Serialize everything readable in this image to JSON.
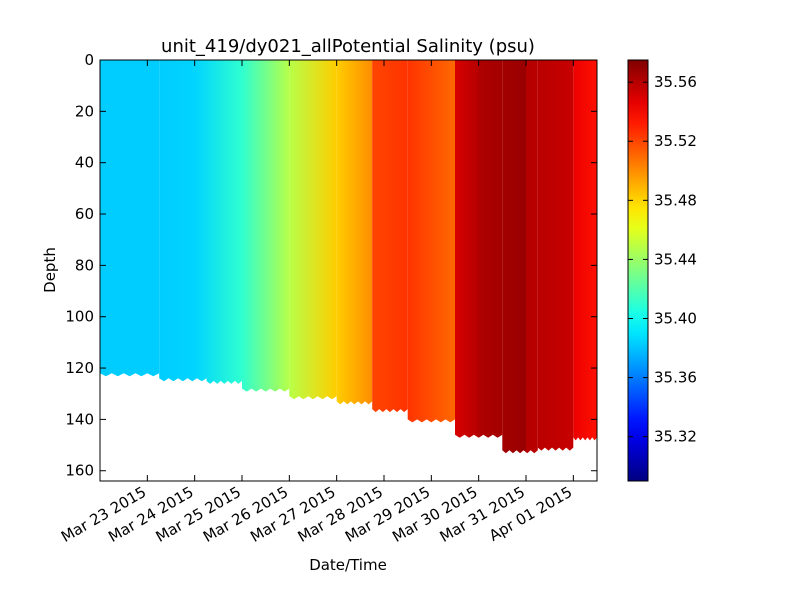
{
  "chart_data": {
    "type": "scatter",
    "title": "unit_419/dy021_allPotential Salinity (psu)",
    "xlabel": "Date/Time",
    "ylabel": "Depth",
    "x_axis_type": "date",
    "xlim": [
      "2015-03-22",
      "2015-04-01 12:00"
    ],
    "ylim": [
      164,
      0
    ],
    "y_inverted": true,
    "x_ticks": [
      "2015-03-23",
      "2015-03-24",
      "2015-03-25",
      "2015-03-26",
      "2015-03-27",
      "2015-03-28",
      "2015-03-29",
      "2015-03-30",
      "2015-03-31",
      "2015-04-01"
    ],
    "x_tick_labels": [
      "Mar 23 2015",
      "Mar 24 2015",
      "Mar 25 2015",
      "Mar 26 2015",
      "Mar 27 2015",
      "Mar 28 2015",
      "Mar 29 2015",
      "Mar 30 2015",
      "Mar 31 2015",
      "Apr 01 2015"
    ],
    "y_ticks": [
      0,
      20,
      40,
      60,
      80,
      100,
      120,
      140,
      160
    ],
    "y_tick_labels": [
      "0",
      "20",
      "40",
      "60",
      "80",
      "100",
      "120",
      "140",
      "160"
    ],
    "colorbar": {
      "colormap": "jet",
      "range": [
        35.29,
        35.575
      ],
      "ticks": [
        35.32,
        35.36,
        35.4,
        35.44,
        35.48,
        35.52,
        35.56
      ],
      "tick_labels": [
        "35.32",
        "35.36",
        "35.40",
        "35.44",
        "35.48",
        "35.52",
        "35.56"
      ]
    },
    "grid": false,
    "profile_groups": [
      {
        "date_start": "2015-03-22",
        "date_end": "2015-03-23 06:00",
        "value": 35.383,
        "max_depth": 122
      },
      {
        "date_start": "2015-03-23 06:00",
        "date_end": "2015-03-24 06:00",
        "value": 35.384,
        "max_depth": 124
      },
      {
        "date_start": "2015-03-24 06:00",
        "date_end": "2015-03-25",
        "value": 35.395,
        "max_depth": 125
      },
      {
        "date_start": "2015-03-25",
        "date_end": "2015-03-26",
        "value": 35.425,
        "max_depth": 128
      },
      {
        "date_start": "2015-03-26",
        "date_end": "2015-03-27",
        "value": 35.465,
        "max_depth": 131
      },
      {
        "date_start": "2015-03-27",
        "date_end": "2015-03-27 18:00",
        "value": 35.49,
        "max_depth": 133
      },
      {
        "date_start": "2015-03-27 18:00",
        "date_end": "2015-03-28 12:00",
        "value": 35.525,
        "max_depth": 136
      },
      {
        "date_start": "2015-03-28 12:00",
        "date_end": "2015-03-29 12:00",
        "value": 35.52,
        "max_depth": 140
      },
      {
        "date_start": "2015-03-29 12:00",
        "date_end": "2015-03-30 12:00",
        "value": 35.56,
        "max_depth": 146
      },
      {
        "date_start": "2015-03-30 12:00",
        "date_end": "2015-03-31 06:00",
        "value": 35.567,
        "max_depth": 152
      },
      {
        "date_start": "2015-03-31 06:00",
        "date_end": "2015-04-01",
        "value": 35.556,
        "max_depth": 151
      },
      {
        "date_start": "2015-04-01",
        "date_end": "2015-04-01 12:00",
        "value": 35.535,
        "max_depth": 147
      }
    ],
    "color_segments": [
      {
        "date_start": "2015-03-22",
        "date_end": "2015-03-23 06:00",
        "value_start": 35.383,
        "value_end": 35.383
      },
      {
        "date_start": "2015-03-23 06:00",
        "date_end": "2015-03-24",
        "value_start": 35.383,
        "value_end": 35.385
      },
      {
        "date_start": "2015-03-24",
        "date_end": "2015-03-25",
        "value_start": 35.385,
        "value_end": 35.41
      },
      {
        "date_start": "2015-03-25",
        "date_end": "2015-03-26",
        "value_start": 35.41,
        "value_end": 35.448
      },
      {
        "date_start": "2015-03-26",
        "date_end": "2015-03-27",
        "value_start": 35.448,
        "value_end": 35.482
      },
      {
        "date_start": "2015-03-27",
        "date_end": "2015-03-27 18:00",
        "value_start": 35.482,
        "value_end": 35.5
      },
      {
        "date_start": "2015-03-27 18:00",
        "date_end": "2015-03-28 12:00",
        "value_start": 35.52,
        "value_end": 35.525
      },
      {
        "date_start": "2015-03-28 12:00",
        "date_end": "2015-03-29 12:00",
        "value_start": 35.525,
        "value_end": 35.51
      },
      {
        "date_start": "2015-03-29 12:00",
        "date_end": "2015-03-30",
        "value_start": 35.55,
        "value_end": 35.56
      },
      {
        "date_start": "2015-03-30",
        "date_end": "2015-03-31",
        "value_start": 35.562,
        "value_end": 35.568
      },
      {
        "date_start": "2015-03-31",
        "date_end": "2015-04-01",
        "value_start": 35.56,
        "value_end": 35.555
      },
      {
        "date_start": "2015-04-01",
        "date_end": "2015-04-01 12:00",
        "value_start": 35.545,
        "value_end": 35.535
      }
    ]
  }
}
